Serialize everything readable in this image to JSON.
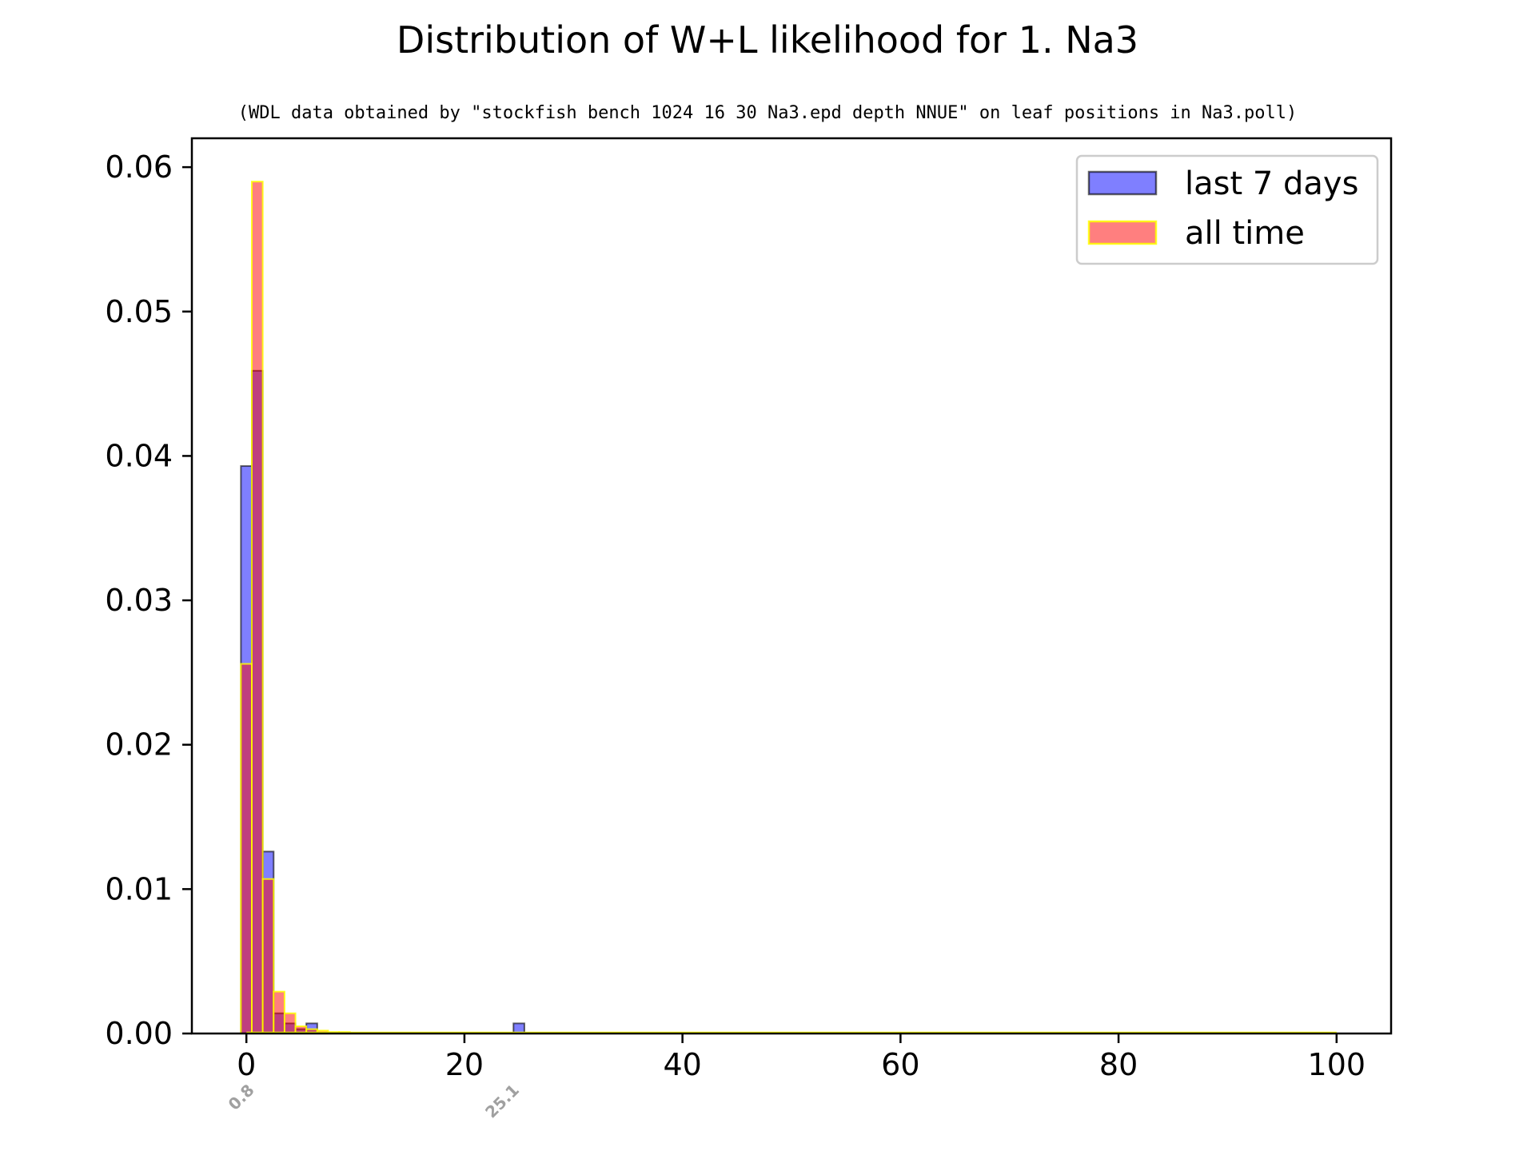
{
  "chart_data": {
    "type": "bar",
    "title": "Distribution of W+L likelihood for 1. Na3",
    "subtitle": "(WDL data obtained by \"stockfish bench 1024 16 30 Na3.epd depth NNUE\" on leaf positions in Na3.poll)",
    "xlabel": "",
    "ylabel": "",
    "xlim": [
      -5,
      105
    ],
    "ylim": [
      0,
      0.062
    ],
    "x_ticks": [
      "0",
      "20",
      "40",
      "60",
      "80",
      "100"
    ],
    "y_ticks": [
      "0.00",
      "0.01",
      "0.02",
      "0.03",
      "0.04",
      "0.05",
      "0.06"
    ],
    "grid": false,
    "legend_position": "top-right",
    "bin_width": 1,
    "series": [
      {
        "name": "last 7 days",
        "fill": "#0000ff",
        "edge": "#000000",
        "bins": [
          {
            "x": 0,
            "y": 0.0393
          },
          {
            "x": 1,
            "y": 0.0459
          },
          {
            "x": 2,
            "y": 0.0126
          },
          {
            "x": 3,
            "y": 0.0014
          },
          {
            "x": 4,
            "y": 0.0007
          },
          {
            "x": 5,
            "y": 0.0003
          },
          {
            "x": 6,
            "y": 0.0007
          },
          {
            "x": 25,
            "y": 0.0007
          }
        ]
      },
      {
        "name": "all time",
        "fill": "#ff0000",
        "edge": "#ffff00",
        "bins": [
          {
            "x": 0,
            "y": 0.0256
          },
          {
            "x": 1,
            "y": 0.059
          },
          {
            "x": 2,
            "y": 0.0107
          },
          {
            "x": 3,
            "y": 0.0029
          },
          {
            "x": 4,
            "y": 0.0014
          },
          {
            "x": 5,
            "y": 0.0005
          },
          {
            "x": 6,
            "y": 0.0003
          },
          {
            "x": 7,
            "y": 0.0002
          },
          {
            "x": 8,
            "y": 0.0001
          },
          {
            "x": 9,
            "y": 0.0001
          }
        ]
      }
    ],
    "markers": [
      {
        "x": 0.8,
        "label": "0.8"
      },
      {
        "x": 25.1,
        "label": "25.1"
      }
    ],
    "baseline": {
      "x_from": 0,
      "x_to": 100,
      "color": "#ffff00"
    }
  }
}
